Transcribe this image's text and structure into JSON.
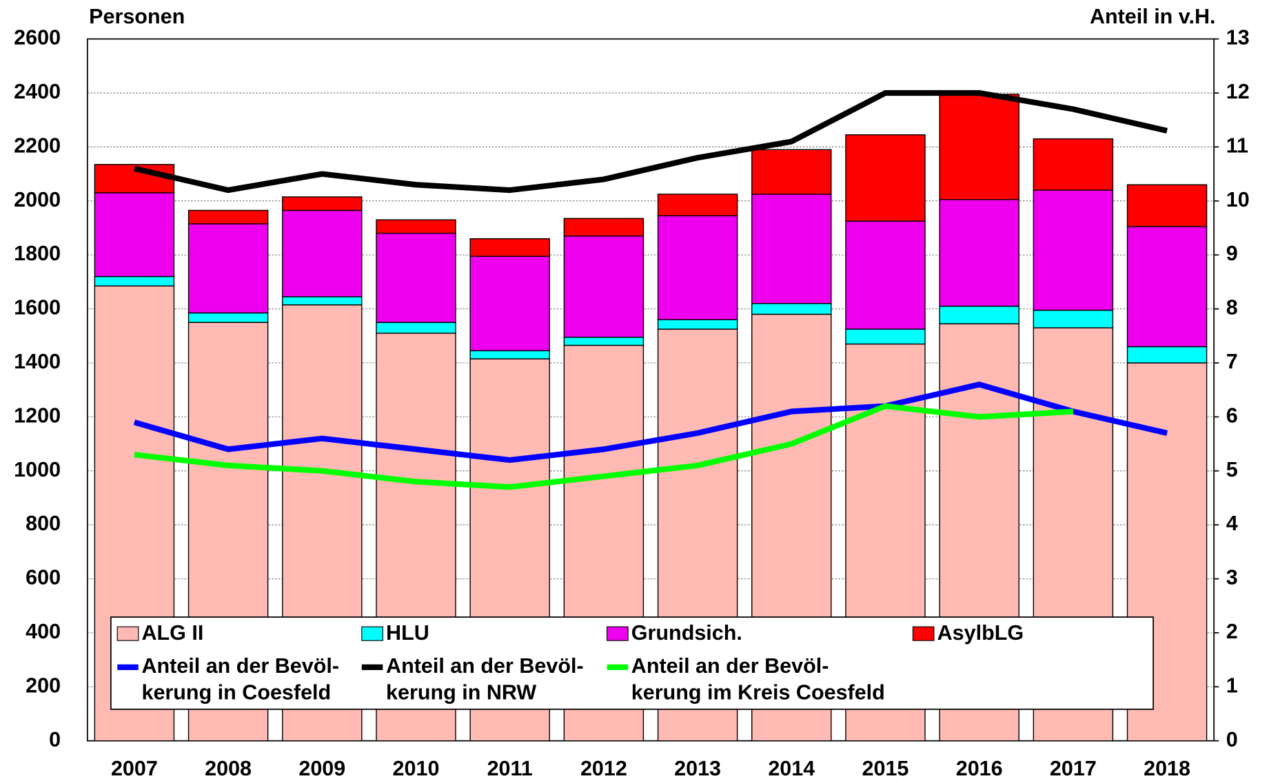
{
  "chart_data": {
    "type": "bar",
    "stacked": true,
    "y_label": "Personen",
    "y2_label": "Anteil in v.H.",
    "categories": [
      "2007",
      "2008",
      "2009",
      "2010",
      "2011",
      "2012",
      "2013",
      "2014",
      "2015",
      "2016",
      "2017",
      "2018"
    ],
    "ylim": [
      0,
      2600
    ],
    "yticks": [
      0,
      200,
      400,
      600,
      800,
      1000,
      1200,
      1400,
      1600,
      1800,
      2000,
      2200,
      2400,
      2600
    ],
    "y2lim": [
      0,
      13
    ],
    "y2ticks": [
      0,
      1,
      2,
      3,
      4,
      5,
      6,
      7,
      8,
      9,
      10,
      11,
      12,
      13
    ],
    "grid": true,
    "series": [
      {
        "name": "ALG II",
        "color": "#ffbab3",
        "values": [
          1685,
          1550,
          1615,
          1510,
          1415,
          1465,
          1525,
          1580,
          1470,
          1545,
          1530,
          1400
        ]
      },
      {
        "name": "HLU",
        "color": "#00ffff",
        "values": [
          35,
          35,
          30,
          40,
          30,
          30,
          35,
          40,
          55,
          65,
          65,
          60
        ]
      },
      {
        "name": "Grundsich.",
        "color": "#ee00ee",
        "values": [
          310,
          330,
          320,
          330,
          350,
          375,
          385,
          405,
          400,
          395,
          445,
          445
        ]
      },
      {
        "name": "AsylbLG",
        "color": "#ff0000",
        "values": [
          105,
          50,
          50,
          50,
          65,
          65,
          80,
          165,
          320,
          390,
          190,
          155
        ]
      },
      {
        "name": "Anteil an der Bevöl-\nkerung in Coesfeld",
        "type": "line",
        "axis": "y2",
        "color": "#0000ff",
        "values": [
          5.9,
          5.4,
          5.6,
          5.4,
          5.2,
          5.4,
          5.7,
          6.1,
          6.2,
          6.6,
          6.1,
          5.7
        ]
      },
      {
        "name": "Anteil an der Bevöl-\nkerung in NRW",
        "type": "line",
        "axis": "y2",
        "color": "#000000",
        "values": [
          10.6,
          10.2,
          10.5,
          10.3,
          10.2,
          10.4,
          10.8,
          11.1,
          12.0,
          12.0,
          11.7,
          11.3
        ]
      },
      {
        "name": "Anteil an der Bevöl-\nkerung im Kreis Coesfeld",
        "type": "line",
        "axis": "y2",
        "color": "#00ff00",
        "values": [
          5.3,
          5.1,
          5.0,
          4.8,
          4.7,
          4.9,
          5.1,
          5.5,
          6.2,
          6.0,
          6.1,
          null
        ]
      }
    ]
  }
}
